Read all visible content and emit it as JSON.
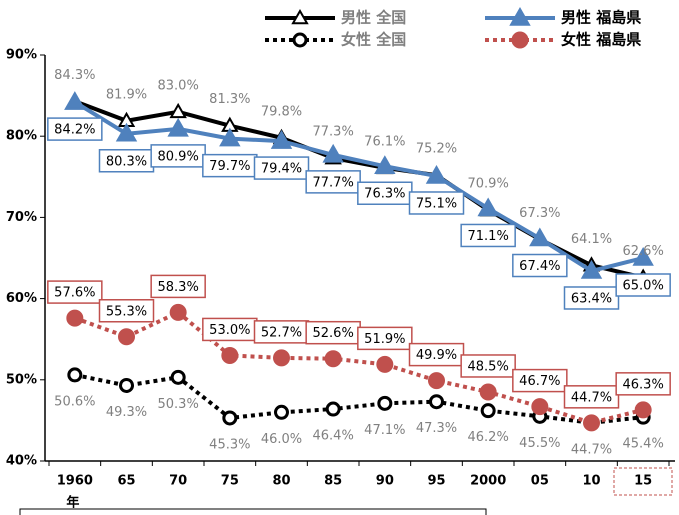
{
  "chart_data": {
    "type": "line",
    "categories": [
      "1960",
      "65",
      "70",
      "75",
      "80",
      "85",
      "90",
      "95",
      "2000",
      "05",
      "10",
      "15"
    ],
    "x_unit": "年",
    "ylim": [
      40,
      90
    ],
    "yticks": [
      {
        "value": 40,
        "label": "40%"
      },
      {
        "value": 50,
        "label": "50%"
      },
      {
        "value": 60,
        "label": "60%"
      },
      {
        "value": 70,
        "label": "70%"
      },
      {
        "value": 80,
        "label": "80%"
      },
      {
        "value": 90,
        "label": "90%"
      }
    ],
    "series": [
      {
        "name": "男性 全国",
        "color": "#000000",
        "marker": "triangle",
        "filled": false,
        "dashed": false,
        "label_box": false,
        "label_side": "above",
        "values": [
          84.3,
          81.9,
          83.0,
          81.3,
          79.8,
          77.3,
          76.1,
          75.2,
          70.9,
          67.3,
          64.1,
          62.6
        ],
        "value_labels": [
          "84.3%",
          "81.9%",
          "83.0%",
          "81.3%",
          "79.8%",
          "77.3%",
          "76.1%",
          "75.2%",
          "70.9%",
          "67.3%",
          "64.1%",
          "62.6%"
        ]
      },
      {
        "name": "男性 福島県",
        "color": "#4f81bd",
        "marker": "triangle",
        "filled": true,
        "dashed": false,
        "label_box": true,
        "label_side": "below",
        "values": [
          84.2,
          80.3,
          80.9,
          79.7,
          79.4,
          77.7,
          76.3,
          75.1,
          71.1,
          67.4,
          63.4,
          65.0
        ],
        "value_labels": [
          "84.2%",
          "80.3%",
          "80.9%",
          "79.7%",
          "79.4%",
          "77.7%",
          "76.3%",
          "75.1%",
          "71.1%",
          "67.4%",
          "63.4%",
          "65.0%"
        ]
      },
      {
        "name": "女性 全国",
        "color": "#000000",
        "marker": "circle",
        "filled": false,
        "dashed": true,
        "label_box": false,
        "label_side": "below",
        "values": [
          50.6,
          49.3,
          50.3,
          45.3,
          46.0,
          46.4,
          47.1,
          47.3,
          46.2,
          45.5,
          44.7,
          45.4
        ],
        "value_labels": [
          "50.6%",
          "49.3%",
          "50.3%",
          "45.3%",
          "46.0%",
          "46.4%",
          "47.1%",
          "47.3%",
          "46.2%",
          "45.5%",
          "44.7%",
          "45.4%"
        ]
      },
      {
        "name": "女性 福島県",
        "color": "#c0504d",
        "marker": "circle",
        "filled": true,
        "dashed": true,
        "label_box": true,
        "label_side": "above",
        "values": [
          57.6,
          55.3,
          58.3,
          53.0,
          52.7,
          52.6,
          51.9,
          49.9,
          48.5,
          46.7,
          44.7,
          46.3
        ],
        "value_labels": [
          "57.6%",
          "55.3%",
          "58.3%",
          "53.0%",
          "52.7%",
          "52.6%",
          "51.9%",
          "49.9%",
          "48.5%",
          "46.7%",
          "44.7%",
          "46.3%"
        ]
      }
    ]
  }
}
